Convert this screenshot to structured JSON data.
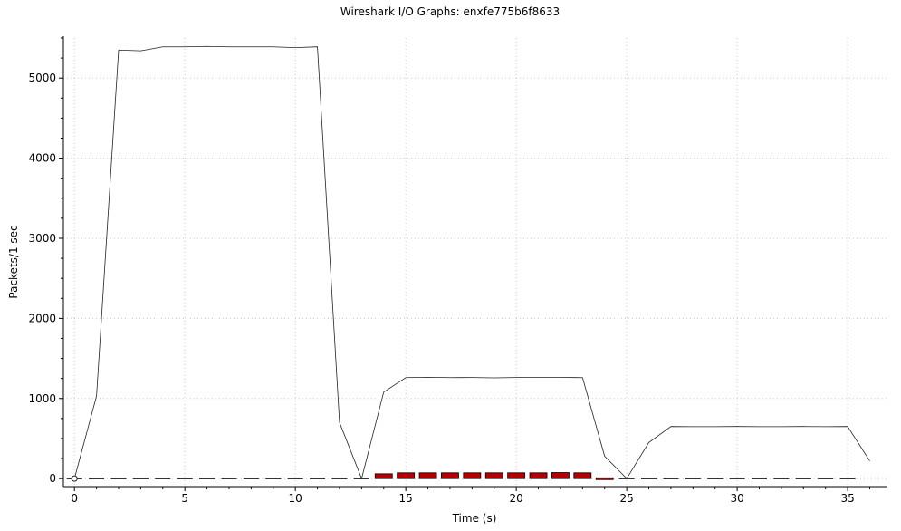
{
  "chart_data": {
    "type": "line",
    "title": "Wireshark I/O Graphs: enxfe775b6f8633",
    "xlabel": "Time (s)",
    "ylabel": "Packets/1 sec",
    "xlim": [
      -0.5,
      36.8
    ],
    "ylim": [
      -100,
      5500
    ],
    "x_ticks": [
      0,
      5,
      10,
      15,
      20,
      25,
      30,
      35
    ],
    "y_ticks": [
      0,
      1000,
      2000,
      3000,
      4000,
      5000
    ],
    "grid": true,
    "series": [
      {
        "style": "line",
        "x": [
          0,
          1,
          2,
          3,
          4,
          5,
          6,
          7,
          8,
          9,
          10,
          11,
          12,
          13,
          14,
          15,
          16,
          17,
          18,
          19,
          20,
          21,
          22,
          23,
          24,
          25,
          26,
          27,
          28,
          29,
          30,
          31,
          32,
          33,
          34,
          35,
          36
        ],
        "values": [
          0,
          1030,
          5350,
          5340,
          5390,
          5390,
          5395,
          5390,
          5390,
          5390,
          5380,
          5390,
          700,
          0,
          1080,
          1260,
          1265,
          1260,
          1262,
          1258,
          1262,
          1263,
          1263,
          1260,
          280,
          0,
          450,
          650,
          648,
          648,
          650,
          648,
          648,
          650,
          648,
          650,
          220
        ]
      },
      {
        "style": "bar",
        "x": [
          14,
          15,
          16,
          17,
          18,
          19,
          20,
          21,
          22,
          23,
          24
        ],
        "values": [
          60,
          72,
          72,
          72,
          72,
          72,
          72,
          72,
          75,
          72,
          10
        ]
      },
      {
        "style": "dash",
        "x": [
          0,
          1,
          2,
          3,
          4,
          5,
          6,
          7,
          8,
          9,
          10,
          11,
          12,
          13,
          14,
          15,
          16,
          17,
          18,
          19,
          20,
          21,
          22,
          23,
          24,
          25,
          26,
          27,
          28,
          29,
          30,
          31,
          32,
          33,
          34,
          35
        ],
        "values": [
          0,
          0,
          0,
          0,
          0,
          0,
          0,
          0,
          0,
          0,
          0,
          0,
          0,
          0,
          0,
          0,
          0,
          0,
          0,
          0,
          0,
          0,
          0,
          0,
          0,
          0,
          0,
          0,
          0,
          0,
          0,
          0,
          0,
          0,
          0,
          0
        ]
      }
    ],
    "marker_point": {
      "x": 0,
      "y": 0
    },
    "colors": {
      "line": "#222222",
      "bar_fill": "#b30000",
      "dash": "#333333",
      "grid": "#c8c8c8"
    }
  }
}
